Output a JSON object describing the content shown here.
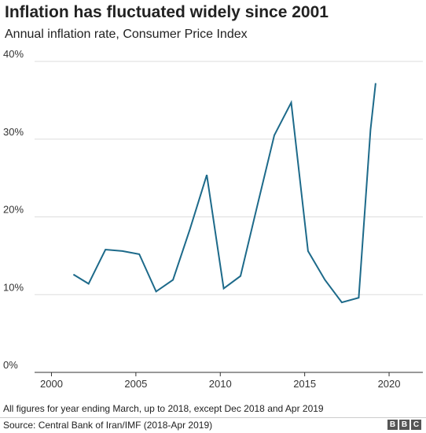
{
  "title": "Inflation has fluctuated widely since 2001",
  "subtitle": "Annual inflation rate, Consumer Price Index",
  "note": "All figures for year ending March, up to 2018, except Dec 2018 and Apr 2019",
  "source": "Source: Central Bank of Iran/IMF (2018-Apr 2019)",
  "logo": [
    "B",
    "B",
    "C"
  ],
  "colors": {
    "line": "#1d6a8a",
    "grid": "#dddddd",
    "axis": "#333333"
  },
  "chart_data": {
    "type": "line",
    "title": "Inflation has fluctuated widely since 2001",
    "subtitle": "Annual inflation rate, Consumer Price Index",
    "xlabel": "",
    "ylabel": "",
    "xlim": [
      1999,
      2022
    ],
    "ylim": [
      0,
      40
    ],
    "x_ticks": [
      2000,
      2005,
      2010,
      2015,
      2020
    ],
    "y_ticks": [
      0,
      10,
      20,
      30,
      40
    ],
    "y_tick_labels": [
      "0%",
      "10%",
      "20%",
      "30%",
      "40%"
    ],
    "grid": true,
    "series": [
      {
        "x": [
          2001.3,
          2002.2,
          2003.2,
          2004.2,
          2005.2,
          2006.2,
          2007.2,
          2008.2,
          2009.2,
          2010.2,
          2011.2,
          2012.2,
          2013.2,
          2014.2,
          2015.2,
          2016.2,
          2017.2,
          2018.2,
          2018.9,
          2019.2
        ],
        "y": [
          12.6,
          11.4,
          15.8,
          15.6,
          15.2,
          10.4,
          11.9,
          18.4,
          25.4,
          10.8,
          12.4,
          21.5,
          30.5,
          34.7,
          15.6,
          11.9,
          9.0,
          9.6,
          31.2,
          37.2
        ]
      }
    ]
  }
}
